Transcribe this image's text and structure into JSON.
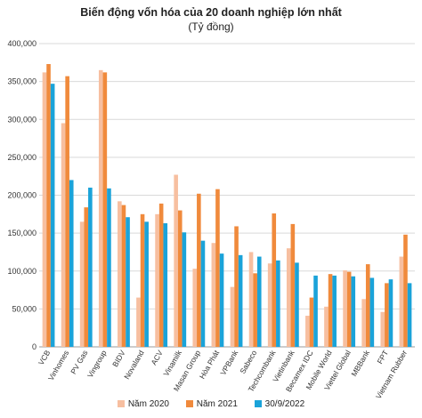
{
  "chart_data": {
    "type": "bar",
    "title": "Biến động vốn hóa của 20 doanh nghiệp lớn nhất",
    "subtitle": "(Tỷ đồng)",
    "categories": [
      "VCB",
      "Vinhomes",
      "PV Gas",
      "Vingroup",
      "BIDV",
      "Novaland",
      "ACV",
      "Vinamilk",
      "Masan Group",
      "Hòa Phát",
      "VPBank",
      "Sabeco",
      "Techcombank",
      "Vietinbank",
      "Becamex IDC",
      "Mobile World",
      "Viettel Global",
      "MBBank",
      "FPT",
      "Vietnam Rubber"
    ],
    "series": [
      {
        "name": "Năm 2020",
        "color": "#f7bfa0",
        "values": [
          362000,
          295000,
          165000,
          365000,
          192000,
          65000,
          175000,
          227000,
          103000,
          137000,
          79000,
          125000,
          110000,
          130000,
          41000,
          53000,
          101000,
          63000,
          46000,
          119000
        ]
      },
      {
        "name": "Năm 2021",
        "color": "#f08a3c",
        "values": [
          373000,
          357000,
          184000,
          362000,
          187000,
          175000,
          189000,
          180000,
          202000,
          208000,
          159000,
          97000,
          176000,
          162000,
          65000,
          96000,
          99000,
          109000,
          84000,
          148000
        ]
      },
      {
        "name": "30/9/2022",
        "color": "#1aa3d9",
        "values": [
          347000,
          220000,
          210000,
          209000,
          171000,
          165000,
          163000,
          151000,
          140000,
          123000,
          121000,
          119000,
          114000,
          111000,
          94000,
          94000,
          93000,
          91000,
          89000,
          84000
        ]
      }
    ],
    "ylim": [
      0,
      400000
    ],
    "yticks": [
      0,
      50000,
      100000,
      150000,
      200000,
      250000,
      300000,
      350000,
      400000
    ],
    "ytick_labels": [
      "0",
      "50,000",
      "100,000",
      "150,000",
      "200,000",
      "250,000",
      "300,000",
      "350,000",
      "400,000"
    ],
    "grid": true,
    "legend": "bottom"
  }
}
